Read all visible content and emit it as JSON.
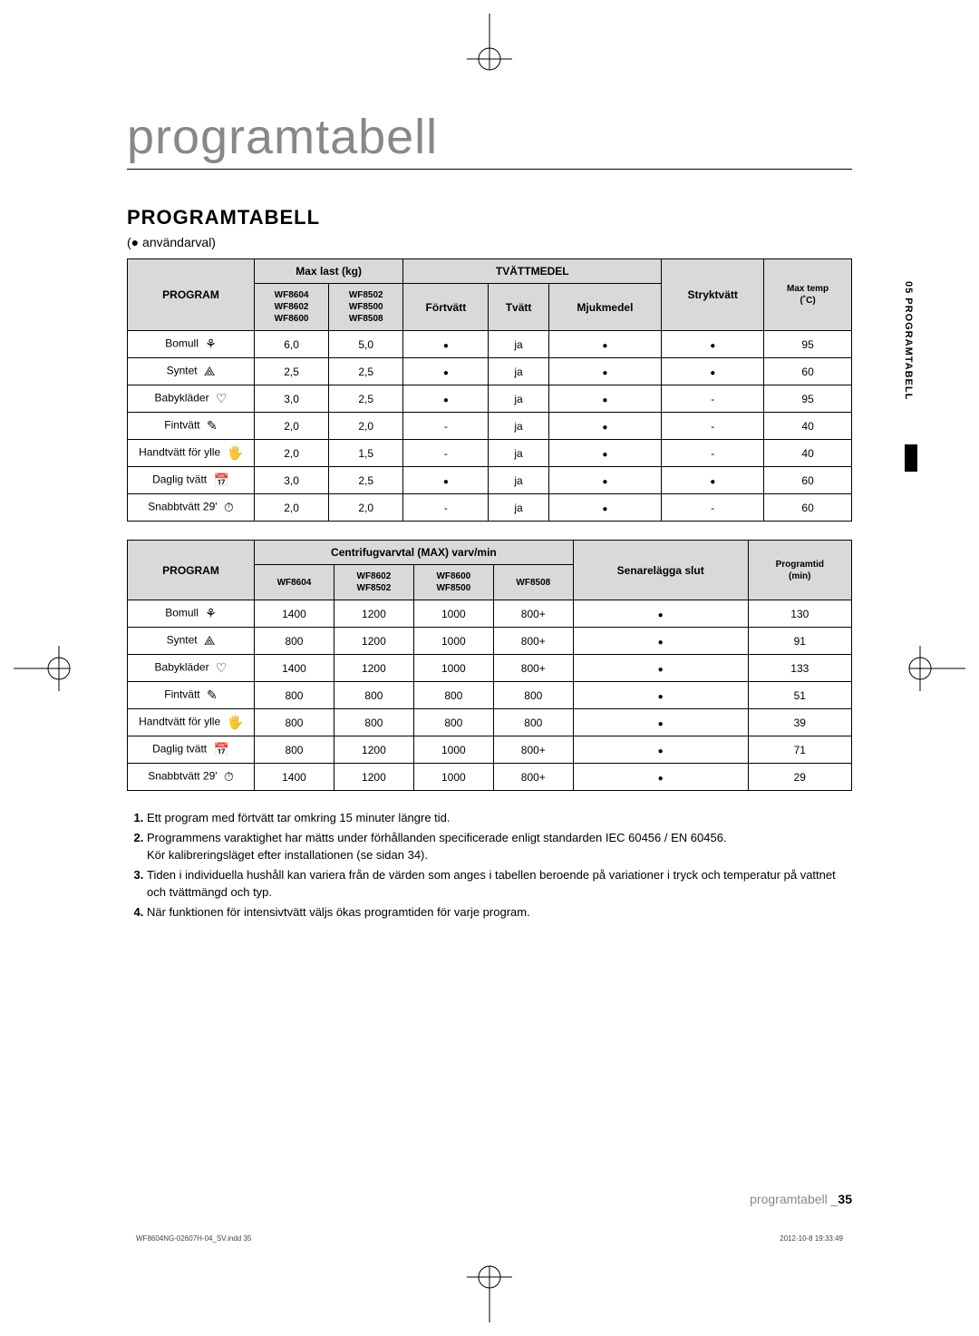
{
  "title": "programtabell",
  "section_title": "PROGRAMTABELL",
  "note_prefix": "(",
  "note_bullet": "●",
  "note_text": " användarval)",
  "side_tab": "05  PROGRAMTABELL",
  "page_footer_label": "programtabell _",
  "page_footer_num": "35",
  "print_footer_left": "WF8604NG-02607H-04_SV.indd   35",
  "print_footer_right": "2012-10-8   19:33:49",
  "icons": {
    "bomull": "⚘",
    "syntet": "⟁",
    "babyklader": "♡",
    "fintvatt": "✎",
    "handtvatt": "🖐",
    "daglig": "📅",
    "snabb": "⏱"
  },
  "table1": {
    "headers": {
      "program": "PROGRAM",
      "maxlast": "Max last (kg)",
      "maxlast_a": "WF8604\nWF8602\nWF8600",
      "maxlast_b": "WF8502\nWF8500\nWF8508",
      "tvattmedel": "TVÄTTMEDEL",
      "fortvatt": "Förtvätt",
      "tvatt": "Tvätt",
      "mjukmedel": "Mjukmedel",
      "stryktvatt": "Stryktvätt",
      "maxtemp": "Max temp\n(˚C)"
    },
    "rows": [
      {
        "label": "Bomull",
        "icon": "bomull",
        "a": "6,0",
        "b": "5,0",
        "fortvatt": "dot",
        "tvatt": "ja",
        "mjuk": "dot",
        "stryk": "dot",
        "temp": "95"
      },
      {
        "label": "Syntet",
        "icon": "syntet",
        "a": "2,5",
        "b": "2,5",
        "fortvatt": "dot",
        "tvatt": "ja",
        "mjuk": "dot",
        "stryk": "dot",
        "temp": "60"
      },
      {
        "label": "Babykläder",
        "icon": "babyklader",
        "a": "3,0",
        "b": "2,5",
        "fortvatt": "dot",
        "tvatt": "ja",
        "mjuk": "dot",
        "stryk": "dash",
        "temp": "95"
      },
      {
        "label": "Fintvätt",
        "icon": "fintvatt",
        "a": "2,0",
        "b": "2,0",
        "fortvatt": "dash",
        "tvatt": "ja",
        "mjuk": "dot",
        "stryk": "dash",
        "temp": "40"
      },
      {
        "label": "Handtvätt för ylle",
        "icon": "handtvatt",
        "a": "2,0",
        "b": "1,5",
        "fortvatt": "dash",
        "tvatt": "ja",
        "mjuk": "dot",
        "stryk": "dash",
        "temp": "40"
      },
      {
        "label": "Daglig tvätt",
        "icon": "daglig",
        "a": "3,0",
        "b": "2,5",
        "fortvatt": "dot",
        "tvatt": "ja",
        "mjuk": "dot",
        "stryk": "dot",
        "temp": "60"
      },
      {
        "label": "Snabbtvätt 29'",
        "icon": "snabb",
        "a": "2,0",
        "b": "2,0",
        "fortvatt": "dash",
        "tvatt": "ja",
        "mjuk": "dot",
        "stryk": "dash",
        "temp": "60"
      }
    ]
  },
  "table2": {
    "headers": {
      "program": "PROGRAM",
      "centrifug": "Centrifugvarvtal (MAX) varv/min",
      "c1": "WF8604",
      "c2": "WF8602\nWF8502",
      "c3": "WF8600\nWF8500",
      "c4": "WF8508",
      "senare": "Senarelägga slut",
      "programtid": "Programtid\n(min)"
    },
    "rows": [
      {
        "label": "Bomull",
        "icon": "bomull",
        "c1": "1400",
        "c2": "1200",
        "c3": "1000",
        "c4": "800+",
        "senare": "dot",
        "tid": "130"
      },
      {
        "label": "Syntet",
        "icon": "syntet",
        "c1": "800",
        "c2": "1200",
        "c3": "1000",
        "c4": "800+",
        "senare": "dot",
        "tid": "91"
      },
      {
        "label": "Babykläder",
        "icon": "babyklader",
        "c1": "1400",
        "c2": "1200",
        "c3": "1000",
        "c4": "800+",
        "senare": "dot",
        "tid": "133"
      },
      {
        "label": "Fintvätt",
        "icon": "fintvatt",
        "c1": "800",
        "c2": "800",
        "c3": "800",
        "c4": "800",
        "senare": "dot",
        "tid": "51"
      },
      {
        "label": "Handtvätt för ylle",
        "icon": "handtvatt",
        "c1": "800",
        "c2": "800",
        "c3": "800",
        "c4": "800",
        "senare": "dot",
        "tid": "39"
      },
      {
        "label": "Daglig tvätt",
        "icon": "daglig",
        "c1": "800",
        "c2": "1200",
        "c3": "1000",
        "c4": "800+",
        "senare": "dot",
        "tid": "71"
      },
      {
        "label": "Snabbtvätt 29'",
        "icon": "snabb",
        "c1": "1400",
        "c2": "1200",
        "c3": "1000",
        "c4": "800+",
        "senare": "dot",
        "tid": "29"
      }
    ]
  },
  "footnotes": [
    "Ett program med förtvätt tar omkring 15 minuter längre tid.",
    "Programmens varaktighet har mätts under förhållanden specificerade enligt standarden IEC 60456 / EN 60456.\nKör kalibreringsläget efter installationen (se sidan 34).",
    "Tiden i individuella hushåll kan variera från de värden som anges i tabellen beroende på variationer i tryck och temperatur på vattnet och tvättmängd och typ.",
    "När funktionen för intensivtvätt väljs ökas programtiden för varje program."
  ]
}
